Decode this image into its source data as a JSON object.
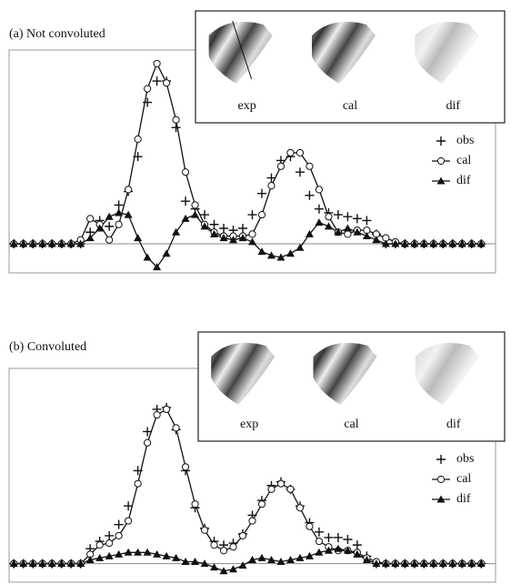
{
  "chart_data": [
    {
      "type": "line",
      "title": "(a) Not convoluted",
      "inset_labels": [
        "exp",
        "cal",
        "dif"
      ],
      "x": [
        0,
        1,
        2,
        3,
        4,
        5,
        6,
        7,
        8,
        9,
        10,
        11,
        12,
        13,
        14,
        15,
        16,
        17,
        18,
        19,
        20,
        21,
        22,
        23,
        24,
        25,
        26,
        27,
        28,
        29,
        30,
        31,
        32,
        33,
        34,
        35,
        36,
        37,
        38,
        39,
        40,
        41,
        42,
        43,
        44,
        45,
        46,
        47,
        48,
        49
      ],
      "xlim": [
        -0.5,
        50.5
      ],
      "ylim": [
        -1.5,
        10
      ],
      "legend": "upper right",
      "series": [
        {
          "name": "obs",
          "color": "#111111",
          "marker": "plus",
          "line": false,
          "values": [
            0,
            0,
            0,
            0,
            0,
            0,
            0,
            0,
            0.6,
            1.2,
            0.9,
            2.0,
            2.7,
            4.5,
            7.3,
            8.4,
            8.4,
            6.0,
            2.2,
            1.8,
            1.5,
            1.0,
            0.8,
            0.7,
            0.8,
            1.5,
            2.6,
            3.4,
            4.3,
            4.5,
            3.7,
            2.5,
            1.8,
            1.6,
            1.5,
            1.4,
            1.3,
            1.2,
            0.5,
            0,
            0,
            0,
            0,
            0,
            0,
            0,
            0,
            0,
            0,
            0
          ]
        },
        {
          "name": "cal",
          "color": "#111111",
          "marker": "circle",
          "line": true,
          "values": [
            0,
            0,
            0,
            0,
            0,
            0,
            0,
            0.2,
            1.3,
            1.0,
            0.2,
            1.0,
            2.8,
            5.4,
            8.0,
            9.3,
            8.3,
            6.4,
            3.7,
            2.0,
            1.0,
            0.6,
            0.4,
            0.4,
            0.4,
            0.5,
            1.5,
            3.0,
            4.0,
            4.7,
            4.7,
            4.0,
            2.8,
            1.4,
            0.6,
            0.5,
            0.7,
            0.7,
            0.5,
            0.3,
            0.1,
            0,
            0,
            0,
            0,
            0,
            0,
            0,
            0,
            0
          ]
        },
        {
          "name": "dif",
          "color": "#111111",
          "marker": "triangle",
          "line": true,
          "values": [
            0,
            0,
            0,
            0,
            0,
            0,
            0,
            0,
            0.3,
            0.8,
            1.4,
            1.6,
            1.5,
            0.3,
            -0.7,
            -1.2,
            -0.5,
            0.6,
            1.3,
            1.5,
            0.9,
            0.5,
            0.3,
            0.2,
            0.3,
            0.1,
            -0.4,
            -0.6,
            -0.7,
            -0.5,
            -0.2,
            0.5,
            1.1,
            0.9,
            0.6,
            0.8,
            0.6,
            0.4,
            0.2,
            0,
            0,
            0,
            0,
            0,
            0,
            0,
            0,
            0,
            0,
            0
          ]
        }
      ]
    },
    {
      "type": "line",
      "title": "(b) Convoluted",
      "inset_labels": [
        "exp",
        "cal",
        "dif"
      ],
      "x": [
        0,
        1,
        2,
        3,
        4,
        5,
        6,
        7,
        8,
        9,
        10,
        11,
        12,
        13,
        14,
        15,
        16,
        17,
        18,
        19,
        20,
        21,
        22,
        23,
        24,
        25,
        26,
        27,
        28,
        29,
        30,
        31,
        32,
        33,
        34,
        35,
        36,
        37,
        38,
        39,
        40,
        41,
        42,
        43,
        44,
        45,
        46,
        47,
        48,
        49
      ],
      "xlim": [
        -0.5,
        50.5
      ],
      "ylim": [
        -1,
        10.5
      ],
      "legend": "upper right",
      "series": [
        {
          "name": "obs",
          "color": "#111111",
          "marker": "plus",
          "line": false,
          "values": [
            0,
            0,
            0,
            0,
            0,
            0,
            0,
            0,
            0.8,
            1.2,
            1.5,
            2.1,
            3.1,
            5.0,
            7.1,
            8.3,
            8.4,
            7.2,
            5.0,
            3.0,
            1.9,
            1.2,
            1.0,
            1.1,
            1.6,
            2.6,
            3.4,
            4.2,
            4.4,
            4.0,
            3.1,
            2.2,
            1.7,
            1.4,
            1.4,
            1.3,
            1.0,
            0.4,
            0,
            0,
            0,
            0,
            0,
            0,
            0,
            0,
            0,
            0,
            0,
            0
          ]
        },
        {
          "name": "cal",
          "color": "#111111",
          "marker": "circle",
          "line": true,
          "values": [
            0,
            0,
            0,
            0,
            0,
            0,
            0,
            0,
            0.5,
            1.0,
            1.1,
            1.5,
            2.3,
            4.3,
            6.5,
            8.0,
            8.3,
            7.3,
            5.2,
            3.2,
            1.8,
            1.0,
            0.7,
            0.9,
            1.5,
            2.3,
            3.2,
            4.0,
            4.3,
            4.0,
            3.0,
            2.0,
            1.2,
            0.9,
            0.7,
            0.7,
            0.6,
            0.3,
            0.1,
            0,
            0,
            0,
            0,
            0,
            0,
            0,
            0,
            0,
            0,
            0
          ]
        },
        {
          "name": "dif",
          "color": "#111111",
          "marker": "triangle",
          "line": true,
          "values": [
            0,
            0,
            0,
            0,
            0,
            0,
            0,
            0,
            0.2,
            0.3,
            0.4,
            0.5,
            0.6,
            0.6,
            0.6,
            0.5,
            0.4,
            0.3,
            0.1,
            0.1,
            0,
            -0.2,
            -0.4,
            -0.3,
            -0.1,
            0.2,
            0.3,
            0.2,
            0.1,
            0.2,
            0.3,
            0.4,
            0.6,
            0.7,
            0.8,
            0.7,
            0.5,
            0.2,
            0,
            0,
            0,
            0,
            0,
            0,
            0,
            0,
            0,
            0,
            0,
            0
          ]
        }
      ]
    }
  ]
}
